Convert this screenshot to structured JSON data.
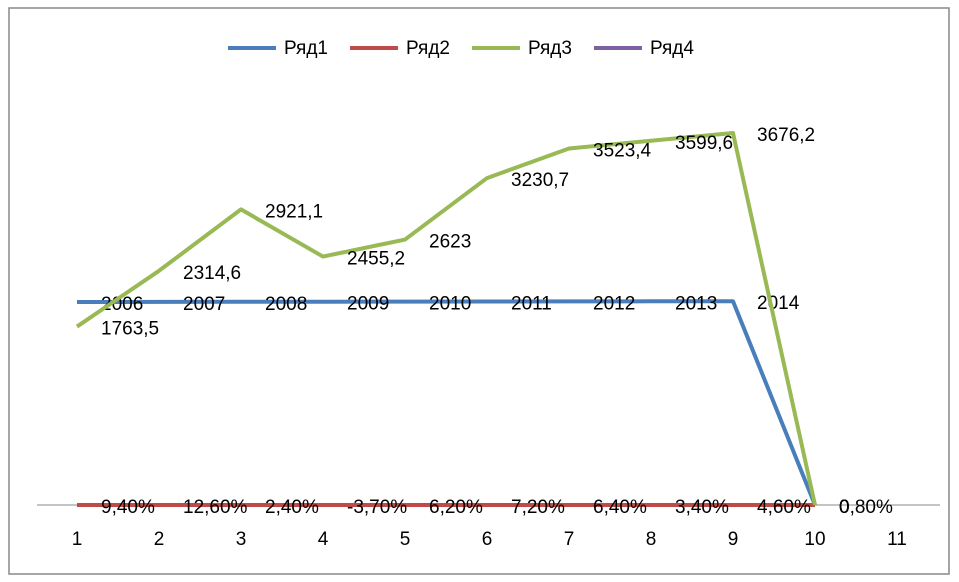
{
  "chart_data": {
    "type": "line",
    "categories": [
      "1",
      "2",
      "3",
      "4",
      "5",
      "6",
      "7",
      "8",
      "9",
      "10",
      "11"
    ],
    "ylim": [
      0,
      4200
    ],
    "legend": "top",
    "series": [
      {
        "name": "Ряд1",
        "color": "#4a7ebb",
        "values": [
          2006,
          2007,
          2008,
          2009,
          2010,
          2011,
          2012,
          2013,
          2014,
          0,
          null
        ]
      },
      {
        "name": "Ряд2",
        "color": "#be4b48",
        "values": [
          0.094,
          0.126,
          0.024,
          -0.037,
          0.062,
          0.072,
          0.064,
          0.034,
          0.046,
          0.008,
          null
        ],
        "value_labels": [
          "9,40%",
          "12,60%",
          "2,40%",
          "-3,70%",
          "6,20%",
          "7,20%",
          "6,40%",
          "3,40%",
          "4,60%",
          "0,80%",
          null
        ]
      },
      {
        "name": "Ряд3",
        "color": "#98b954",
        "values": [
          1763.5,
          2314.6,
          2921.1,
          2455.2,
          2623,
          3230.7,
          3523.4,
          3599.6,
          3676.2,
          0,
          null
        ],
        "value_labels": [
          "1763,5",
          "2314,6",
          "2921,1",
          "2455,2",
          "2623",
          "3230,7",
          "3523,4",
          "3599,6",
          "3676,2",
          "0",
          null
        ]
      },
      {
        "name": "Ряд4",
        "color": "#7d60a0",
        "values": [
          null,
          null,
          null,
          null,
          null,
          null,
          null,
          null,
          null,
          null,
          null
        ]
      }
    ]
  }
}
